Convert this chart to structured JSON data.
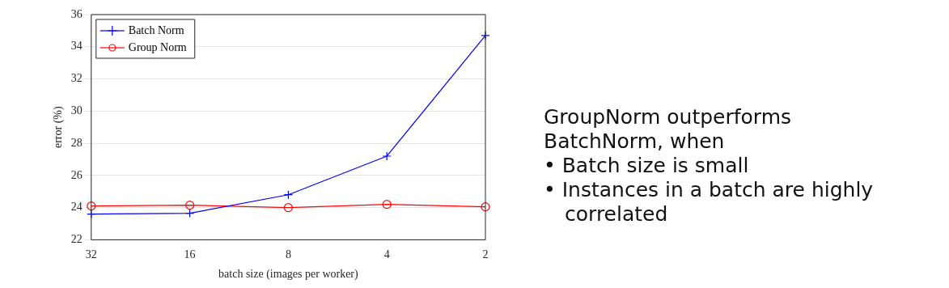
{
  "chart_data": {
    "type": "line",
    "xlabel": "batch size (images per worker)",
    "ylabel": "error (%)",
    "categories": [
      "32",
      "16",
      "8",
      "4",
      "2"
    ],
    "series": [
      {
        "name": "Batch Norm",
        "color": "#0000ff",
        "marker": "cross",
        "values": [
          23.6,
          23.65,
          24.8,
          27.2,
          34.7
        ]
      },
      {
        "name": "Group Norm",
        "color": "#ff0000",
        "marker": "circle",
        "values": [
          24.1,
          24.15,
          24.0,
          24.2,
          24.05
        ]
      }
    ],
    "ylim": [
      22,
      36
    ],
    "yticks": [
      22,
      24,
      26,
      28,
      30,
      32,
      34,
      36
    ],
    "grid": "y",
    "legend": "top left",
    "line_style": "solid",
    "annotations": [
      "GroupNorm outperforms BatchNorm, when",
      "• Batch size is small",
      "• Instances in a batch are highly correlated"
    ]
  }
}
